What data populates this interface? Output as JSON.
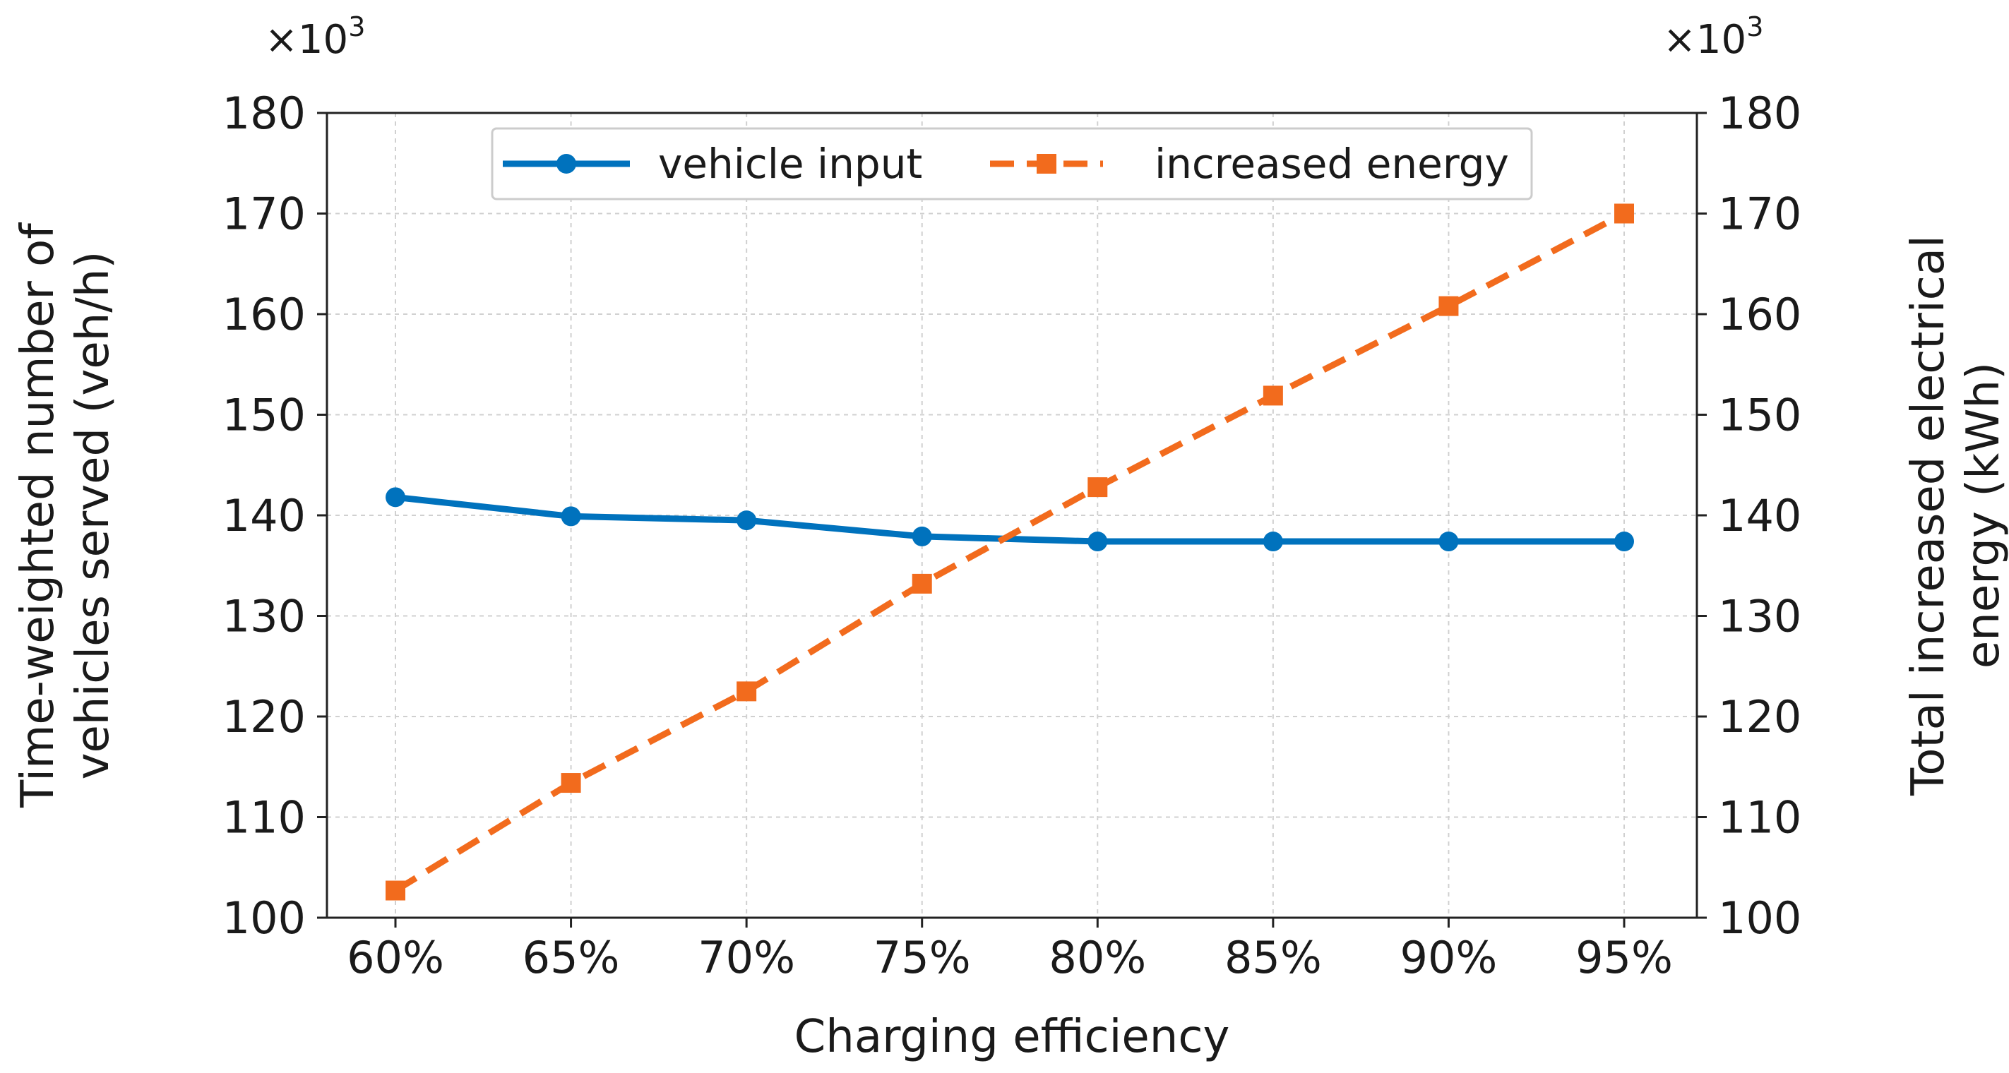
{
  "chart_data": {
    "type": "line",
    "title": "",
    "xlabel": "Charging efficiency",
    "categories": [
      "60%",
      "65%",
      "70%",
      "75%",
      "80%",
      "85%",
      "90%",
      "95%"
    ],
    "y_left": {
      "label_lines": [
        "Time-weighted number of",
        "vehicles served (veh/h)"
      ],
      "multiplier": "×10",
      "exponent": "3",
      "ticks": [
        "100",
        "110",
        "120",
        "130",
        "140",
        "150",
        "160",
        "170",
        "180"
      ],
      "ylim": [
        100,
        180
      ]
    },
    "y_right": {
      "label_lines": [
        "Total increased electrical",
        "energy (kWh)"
      ],
      "multiplier": "×10",
      "exponent": "3",
      "ticks": [
        "100",
        "110",
        "120",
        "130",
        "140",
        "150",
        "160",
        "170",
        "180"
      ],
      "ylim": [
        100,
        180
      ]
    },
    "grid": true,
    "legend_position": "top-center",
    "series": [
      {
        "name": "vehicle input",
        "axis": "left",
        "color": "#0072bd",
        "marker": "circle",
        "linestyle": "solid",
        "values": [
          141.8,
          139.9,
          139.5,
          137.9,
          137.4,
          137.4,
          137.4,
          137.4
        ]
      },
      {
        "name": "increased energy",
        "axis": "right",
        "color": "#f26b1d",
        "marker": "square",
        "linestyle": "dashed",
        "values": [
          102.7,
          113.4,
          122.5,
          133.2,
          142.8,
          151.9,
          160.8,
          170.0
        ]
      }
    ]
  }
}
